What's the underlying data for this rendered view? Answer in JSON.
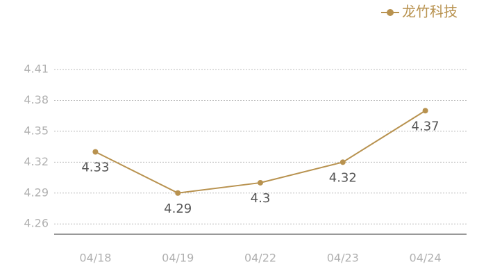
{
  "chart_data": {
    "type": "line",
    "categories": [
      "04/18",
      "04/19",
      "04/22",
      "04/23",
      "04/24"
    ],
    "series": [
      {
        "name": "龙竹科技",
        "color": "#b8924f",
        "values": [
          4.33,
          4.29,
          4.3,
          4.32,
          4.37
        ]
      }
    ],
    "ylim": [
      4.25,
      4.41
    ],
    "yticks": [
      4.26,
      4.29,
      4.32,
      4.35,
      4.38,
      4.41
    ],
    "grid": true,
    "legend": "top-right"
  }
}
